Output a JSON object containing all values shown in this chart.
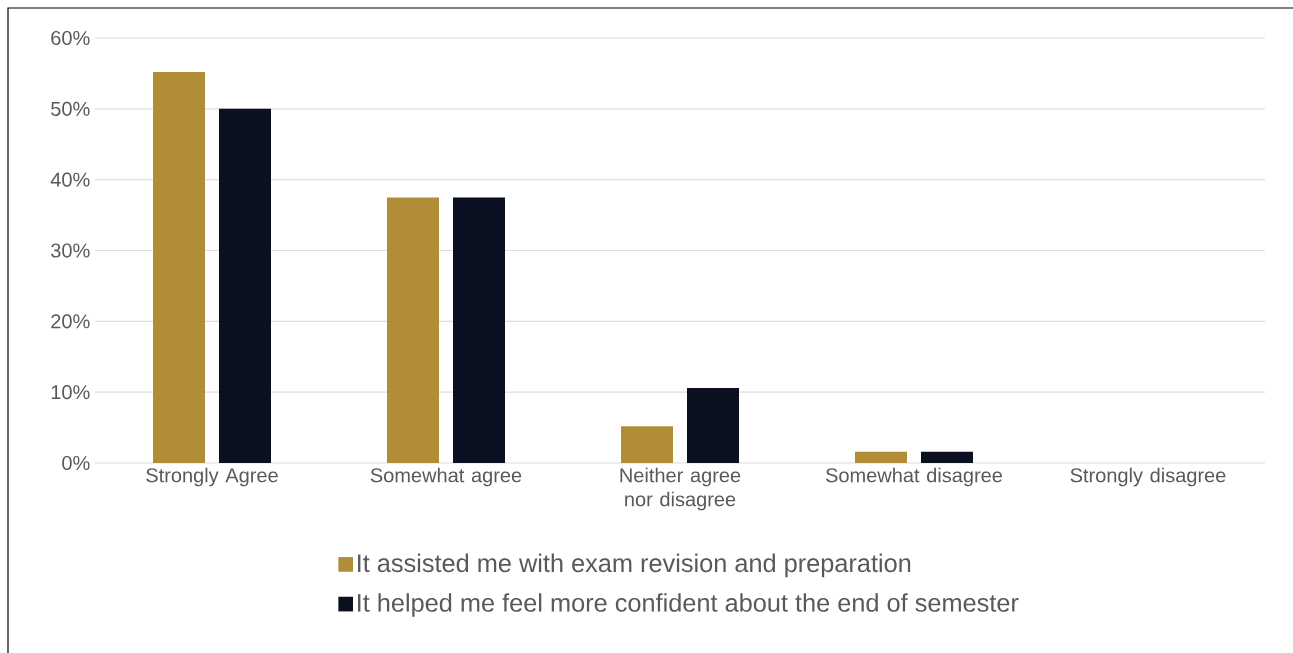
{
  "chart_data": {
    "type": "bar",
    "categories": [
      "Strongly Agree",
      "Somewhat agree",
      "Neither agree nor disagree",
      "Somewhat disagree",
      "Strongly disagree"
    ],
    "series": [
      {
        "name": "It assisted me with exam revision and preparation",
        "color": "#b08d36",
        "values": [
          55.2,
          37.5,
          5.2,
          1.6,
          0
        ]
      },
      {
        "name": "It helped me feel more confident about the end of semester",
        "color": "#0a1020",
        "values": [
          50,
          37.5,
          10.6,
          1.6,
          0
        ]
      }
    ],
    "ylim": [
      0,
      60
    ],
    "yticks": [
      {
        "value": 0,
        "label": "0%"
      },
      {
        "value": 10,
        "label": "10%"
      },
      {
        "value": 20,
        "label": "20%"
      },
      {
        "value": 30,
        "label": "30%"
      },
      {
        "value": 40,
        "label": "40%"
      },
      {
        "value": 50,
        "label": "50%"
      },
      {
        "value": 60,
        "label": "60%"
      }
    ],
    "grid": "y",
    "legend": "bottom"
  }
}
